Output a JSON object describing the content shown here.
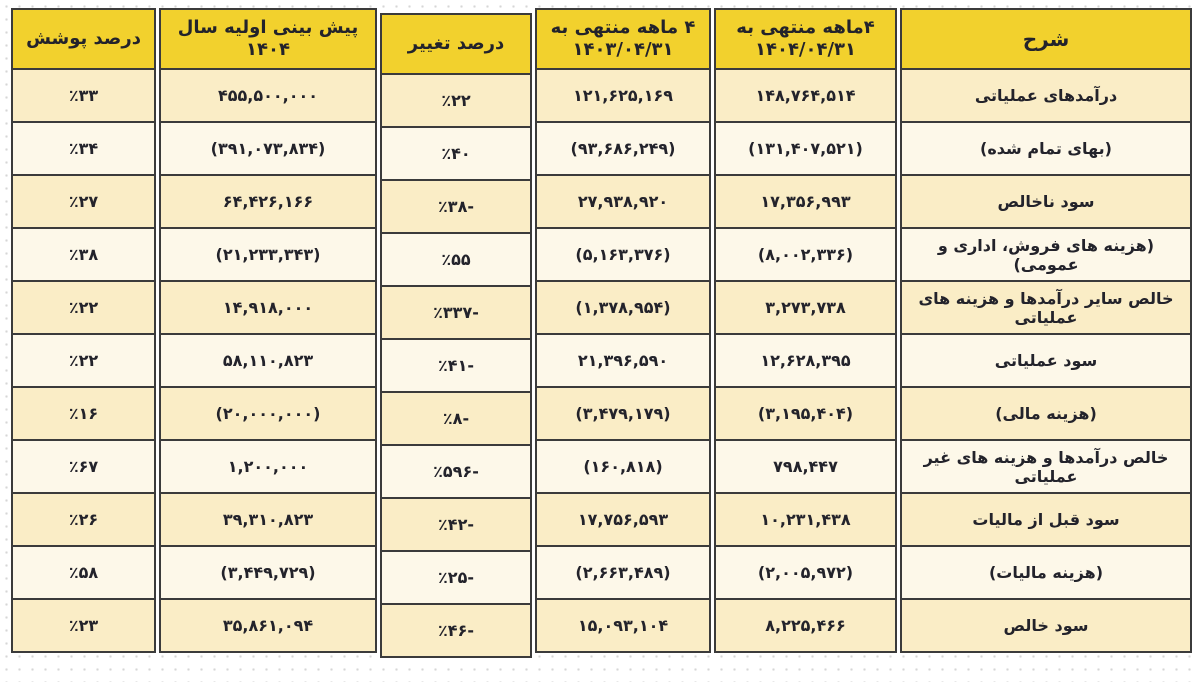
{
  "colors": {
    "header_bg": "#f2d12d",
    "row_dark_bg": "#faedc6",
    "row_light_bg": "#fdf8e9",
    "border": "#3b3b3b",
    "text": "#23232b",
    "page_dots": "#d6d6d6"
  },
  "table": {
    "columns": {
      "description": "شرح",
      "period_current": "۴ماهه منتهی به\n۱۴۰۴/۰۴/۳۱",
      "period_prior": "۴ ماهه منتهی به\n۱۴۰۳/۰۴/۳۱",
      "change": "درصد تغییر",
      "forecast": "پیش بینی اولیه سال\n۱۴۰۴",
      "coverage": "درصد پوشش"
    },
    "rows": [
      {
        "label": "درآمدهای عملیاتی",
        "current": "۱۴۸,۷۶۴,۵۱۴",
        "prior": "۱۲۱,۶۲۵,۱۶۹",
        "change": "٪۲۲",
        "forecast": "۴۵۵,۵۰۰,۰۰۰",
        "coverage": "٪۳۳"
      },
      {
        "label": "(بهای تمام شده)",
        "current": "(۱۳۱,۴۰۷,۵۲۱)",
        "prior": "(۹۳,۶۸۶,۲۴۹)",
        "change": "٪۴۰",
        "forecast": "(۳۹۱,۰۷۳,۸۳۴)",
        "coverage": "٪۳۴"
      },
      {
        "label": "سود ناخالص",
        "current": "۱۷,۳۵۶,۹۹۳",
        "prior": "۲۷,۹۳۸,۹۲۰",
        "change": "٪۳۸-",
        "forecast": "۶۴,۴۲۶,۱۶۶",
        "coverage": "٪۲۷"
      },
      {
        "label": "(هزینه های فروش، اداری و عمومی)",
        "current": "(۸,۰۰۲,۳۳۶)",
        "prior": "(۵,۱۶۳,۳۷۶)",
        "change": "٪۵۵",
        "forecast": "(۲۱,۲۳۳,۳۴۳)",
        "coverage": "٪۳۸"
      },
      {
        "label": "خالص سایر درآمدها و هزینه های عملیاتی",
        "current": "۳,۲۷۳,۷۳۸",
        "prior": "(۱,۳۷۸,۹۵۴)",
        "change": "٪۳۳۷-",
        "forecast": "۱۴,۹۱۸,۰۰۰",
        "coverage": "٪۲۲"
      },
      {
        "label": "سود عملیاتی",
        "current": "۱۲,۶۲۸,۳۹۵",
        "prior": "۲۱,۳۹۶,۵۹۰",
        "change": "٪۴۱-",
        "forecast": "۵۸,۱۱۰,۸۲۳",
        "coverage": "٪۲۲"
      },
      {
        "label": "(هزینه مالی)",
        "current": "(۳,۱۹۵,۴۰۴)",
        "prior": "(۳,۴۷۹,۱۷۹)",
        "change": "٪۸-",
        "forecast": "(۲۰,۰۰۰,۰۰۰)",
        "coverage": "٪۱۶"
      },
      {
        "label": "خالص درآمدها و هزینه های غیر عملیاتی",
        "current": "۷۹۸,۴۴۷",
        "prior": "(۱۶۰,۸۱۸)",
        "change": "٪۵۹۶-",
        "forecast": "۱,۲۰۰,۰۰۰",
        "coverage": "٪۶۷"
      },
      {
        "label": "سود قبل از مالیات",
        "current": "۱۰,۲۳۱,۴۳۸",
        "prior": "۱۷,۷۵۶,۵۹۳",
        "change": "٪۴۲-",
        "forecast": "۳۹,۳۱۰,۸۲۳",
        "coverage": "٪۲۶"
      },
      {
        "label": "(هزینه مالیات)",
        "current": "(۲,۰۰۵,۹۷۲)",
        "prior": "(۲,۶۶۳,۴۸۹)",
        "change": "٪۲۵-",
        "forecast": "(۳,۴۴۹,۷۲۹)",
        "coverage": "٪۵۸"
      },
      {
        "label": "سود خالص",
        "current": "۸,۲۲۵,۴۶۶",
        "prior": "۱۵,۰۹۳,۱۰۴",
        "change": "٪۴۶-",
        "forecast": "۳۵,۸۶۱,۰۹۴",
        "coverage": "٪۲۳"
      }
    ]
  }
}
